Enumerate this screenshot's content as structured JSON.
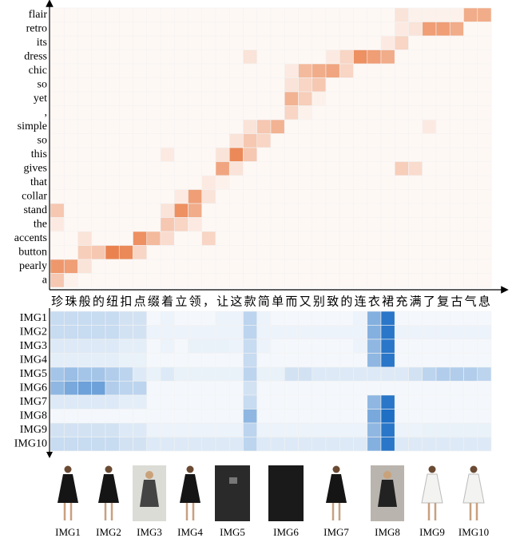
{
  "chart_data": [
    {
      "type": "heatmap",
      "color_low": "#ffffff",
      "color_high": "#e8743b",
      "categories": [
        "珍",
        "珠",
        "般",
        "的",
        "纽",
        "扣",
        "点",
        "缀",
        "着",
        "立",
        "领",
        "，",
        "让",
        "这",
        "款",
        "简",
        "单",
        "而",
        "又",
        "别",
        "致",
        "的",
        "连",
        "衣",
        "裙",
        "充",
        "满",
        "了",
        "复",
        "古",
        "气",
        "息"
      ],
      "rows": [
        "flair",
        "retro",
        "its",
        "dress",
        "chic",
        "so",
        "yet",
        ",",
        "simple",
        "so",
        "this",
        "gives",
        "that",
        "collar",
        "stand",
        "the",
        "accents",
        "button",
        "pearly",
        "a"
      ],
      "values": [
        [
          0.05,
          0.05,
          0.05,
          0.05,
          0.05,
          0.05,
          0.05,
          0.05,
          0.05,
          0.05,
          0.05,
          0.05,
          0.05,
          0.05,
          0.05,
          0.05,
          0.05,
          0.05,
          0.05,
          0.05,
          0.05,
          0.05,
          0.05,
          0.05,
          0.05,
          0.2,
          0.1,
          0.1,
          0.1,
          0.1,
          0.6,
          0.6
        ],
        [
          0.05,
          0.05,
          0.05,
          0.05,
          0.05,
          0.05,
          0.05,
          0.05,
          0.05,
          0.05,
          0.05,
          0.05,
          0.05,
          0.05,
          0.05,
          0.05,
          0.05,
          0.05,
          0.05,
          0.05,
          0.05,
          0.05,
          0.05,
          0.05,
          0.05,
          0.15,
          0.2,
          0.7,
          0.7,
          0.6,
          0.05,
          0.05
        ],
        [
          0.05,
          0.05,
          0.05,
          0.05,
          0.05,
          0.05,
          0.05,
          0.05,
          0.05,
          0.05,
          0.05,
          0.05,
          0.05,
          0.05,
          0.05,
          0.05,
          0.05,
          0.05,
          0.05,
          0.05,
          0.05,
          0.05,
          0.05,
          0.05,
          0.15,
          0.3,
          0.05,
          0.05,
          0.05,
          0.05,
          0.05,
          0.05
        ],
        [
          0.05,
          0.05,
          0.05,
          0.05,
          0.05,
          0.05,
          0.05,
          0.05,
          0.05,
          0.05,
          0.05,
          0.05,
          0.05,
          0.05,
          0.2,
          0.05,
          0.05,
          0.05,
          0.05,
          0.05,
          0.15,
          0.3,
          0.8,
          0.7,
          0.6,
          0.05,
          0.05,
          0.05,
          0.05,
          0.05,
          0.05,
          0.05
        ],
        [
          0.05,
          0.05,
          0.05,
          0.05,
          0.05,
          0.05,
          0.05,
          0.05,
          0.05,
          0.05,
          0.05,
          0.05,
          0.05,
          0.05,
          0.05,
          0.05,
          0.05,
          0.15,
          0.5,
          0.6,
          0.65,
          0.3,
          0.05,
          0.05,
          0.05,
          0.05,
          0.05,
          0.05,
          0.05,
          0.05,
          0.05,
          0.05
        ],
        [
          0.05,
          0.05,
          0.05,
          0.05,
          0.05,
          0.05,
          0.05,
          0.05,
          0.05,
          0.05,
          0.05,
          0.05,
          0.05,
          0.05,
          0.05,
          0.05,
          0.05,
          0.2,
          0.3,
          0.4,
          0.05,
          0.05,
          0.05,
          0.05,
          0.05,
          0.05,
          0.05,
          0.05,
          0.05,
          0.05,
          0.05,
          0.05
        ],
        [
          0.05,
          0.05,
          0.05,
          0.05,
          0.05,
          0.05,
          0.05,
          0.05,
          0.05,
          0.05,
          0.05,
          0.05,
          0.05,
          0.05,
          0.05,
          0.05,
          0.05,
          0.55,
          0.35,
          0.1,
          0.05,
          0.05,
          0.05,
          0.05,
          0.05,
          0.05,
          0.05,
          0.05,
          0.05,
          0.05,
          0.05,
          0.05
        ],
        [
          0.05,
          0.05,
          0.05,
          0.05,
          0.05,
          0.05,
          0.05,
          0.05,
          0.05,
          0.05,
          0.05,
          0.05,
          0.05,
          0.05,
          0.05,
          0.05,
          0.05,
          0.3,
          0.1,
          0.05,
          0.05,
          0.05,
          0.05,
          0.05,
          0.05,
          0.05,
          0.05,
          0.05,
          0.05,
          0.05,
          0.05,
          0.05
        ],
        [
          0.05,
          0.05,
          0.05,
          0.05,
          0.05,
          0.05,
          0.05,
          0.05,
          0.05,
          0.05,
          0.05,
          0.05,
          0.05,
          0.05,
          0.2,
          0.4,
          0.55,
          0.05,
          0.05,
          0.05,
          0.05,
          0.05,
          0.05,
          0.05,
          0.05,
          0.05,
          0.05,
          0.15,
          0.05,
          0.05,
          0.05,
          0.05
        ],
        [
          0.05,
          0.05,
          0.05,
          0.05,
          0.05,
          0.05,
          0.05,
          0.05,
          0.05,
          0.05,
          0.05,
          0.05,
          0.05,
          0.2,
          0.4,
          0.3,
          0.05,
          0.05,
          0.05,
          0.05,
          0.05,
          0.05,
          0.05,
          0.05,
          0.05,
          0.05,
          0.05,
          0.05,
          0.05,
          0.05,
          0.05,
          0.05
        ],
        [
          0.05,
          0.05,
          0.05,
          0.05,
          0.05,
          0.05,
          0.05,
          0.05,
          0.15,
          0.05,
          0.05,
          0.05,
          0.2,
          0.85,
          0.4,
          0.05,
          0.05,
          0.05,
          0.05,
          0.05,
          0.05,
          0.05,
          0.05,
          0.05,
          0.05,
          0.05,
          0.05,
          0.05,
          0.05,
          0.05,
          0.05,
          0.05
        ],
        [
          0.05,
          0.05,
          0.05,
          0.05,
          0.05,
          0.05,
          0.05,
          0.05,
          0.05,
          0.05,
          0.05,
          0.05,
          0.65,
          0.2,
          0.05,
          0.05,
          0.05,
          0.05,
          0.05,
          0.05,
          0.05,
          0.05,
          0.05,
          0.05,
          0.05,
          0.35,
          0.25,
          0.05,
          0.05,
          0.05,
          0.05,
          0.05
        ],
        [
          0.05,
          0.05,
          0.05,
          0.05,
          0.05,
          0.05,
          0.05,
          0.05,
          0.05,
          0.05,
          0.05,
          0.15,
          0.1,
          0.05,
          0.05,
          0.05,
          0.05,
          0.05,
          0.05,
          0.05,
          0.05,
          0.05,
          0.05,
          0.05,
          0.05,
          0.05,
          0.05,
          0.05,
          0.05,
          0.05,
          0.05,
          0.05
        ],
        [
          0.05,
          0.05,
          0.05,
          0.05,
          0.05,
          0.05,
          0.05,
          0.05,
          0.05,
          0.15,
          0.7,
          0.2,
          0.05,
          0.05,
          0.05,
          0.05,
          0.05,
          0.05,
          0.05,
          0.05,
          0.05,
          0.05,
          0.05,
          0.05,
          0.05,
          0.05,
          0.05,
          0.05,
          0.05,
          0.05,
          0.05,
          0.05
        ],
        [
          0.4,
          0.05,
          0.05,
          0.05,
          0.05,
          0.05,
          0.05,
          0.05,
          0.2,
          0.8,
          0.6,
          0.05,
          0.05,
          0.05,
          0.05,
          0.05,
          0.05,
          0.05,
          0.05,
          0.05,
          0.05,
          0.05,
          0.05,
          0.05,
          0.05,
          0.05,
          0.05,
          0.05,
          0.05,
          0.05,
          0.05,
          0.05
        ],
        [
          0.15,
          0.05,
          0.05,
          0.05,
          0.05,
          0.05,
          0.05,
          0.05,
          0.4,
          0.3,
          0.15,
          0.05,
          0.05,
          0.05,
          0.05,
          0.05,
          0.05,
          0.05,
          0.05,
          0.05,
          0.05,
          0.05,
          0.05,
          0.05,
          0.05,
          0.05,
          0.05,
          0.05,
          0.05,
          0.05,
          0.05,
          0.05
        ],
        [
          0.05,
          0.05,
          0.2,
          0.05,
          0.05,
          0.05,
          0.8,
          0.5,
          0.25,
          0.05,
          0.05,
          0.3,
          0.05,
          0.05,
          0.05,
          0.05,
          0.05,
          0.05,
          0.05,
          0.05,
          0.05,
          0.05,
          0.05,
          0.05,
          0.05,
          0.05,
          0.05,
          0.05,
          0.05,
          0.05,
          0.05,
          0.05
        ],
        [
          0.05,
          0.05,
          0.35,
          0.4,
          0.9,
          0.85,
          0.3,
          0.05,
          0.05,
          0.05,
          0.05,
          0.05,
          0.05,
          0.05,
          0.05,
          0.05,
          0.05,
          0.05,
          0.05,
          0.05,
          0.05,
          0.05,
          0.05,
          0.05,
          0.05,
          0.05,
          0.05,
          0.05,
          0.05,
          0.05,
          0.05,
          0.05
        ],
        [
          0.75,
          0.7,
          0.2,
          0.05,
          0.05,
          0.05,
          0.05,
          0.05,
          0.05,
          0.05,
          0.05,
          0.05,
          0.05,
          0.05,
          0.05,
          0.05,
          0.05,
          0.05,
          0.05,
          0.05,
          0.05,
          0.05,
          0.05,
          0.05,
          0.05,
          0.05,
          0.05,
          0.05,
          0.05,
          0.05,
          0.05,
          0.05
        ],
        [
          0.4,
          0.1,
          0.05,
          0.05,
          0.05,
          0.05,
          0.05,
          0.05,
          0.05,
          0.05,
          0.05,
          0.05,
          0.05,
          0.05,
          0.05,
          0.05,
          0.05,
          0.05,
          0.05,
          0.05,
          0.05,
          0.05,
          0.05,
          0.05,
          0.05,
          0.05,
          0.05,
          0.05,
          0.05,
          0.05,
          0.05,
          0.05
        ]
      ]
    },
    {
      "type": "heatmap",
      "color_low": "#ffffff",
      "color_high": "#1f6fc5",
      "rows": [
        "IMG1",
        "IMG2",
        "IMG3",
        "IMG4",
        "IMG5",
        "IMG6",
        "IMG7",
        "IMG8",
        "IMG9",
        "IMG10"
      ],
      "values": [
        [
          0.25,
          0.25,
          0.25,
          0.25,
          0.25,
          0.2,
          0.2,
          0.05,
          0.08,
          0.05,
          0.05,
          0.05,
          0.08,
          0.08,
          0.3,
          0.08,
          0.05,
          0.05,
          0.05,
          0.05,
          0.05,
          0.05,
          0.08,
          0.55,
          0.95,
          0.05,
          0.05,
          0.05,
          0.05,
          0.05,
          0.05,
          0.05
        ],
        [
          0.25,
          0.25,
          0.25,
          0.25,
          0.25,
          0.2,
          0.2,
          0.08,
          0.08,
          0.08,
          0.08,
          0.08,
          0.08,
          0.08,
          0.3,
          0.08,
          0.08,
          0.08,
          0.08,
          0.08,
          0.08,
          0.08,
          0.08,
          0.55,
          0.95,
          0.08,
          0.08,
          0.08,
          0.08,
          0.08,
          0.08,
          0.08
        ],
        [
          0.15,
          0.15,
          0.15,
          0.15,
          0.15,
          0.12,
          0.12,
          0.05,
          0.08,
          0.05,
          0.1,
          0.1,
          0.1,
          0.08,
          0.25,
          0.08,
          0.05,
          0.05,
          0.05,
          0.05,
          0.05,
          0.05,
          0.08,
          0.5,
          0.95,
          0.05,
          0.05,
          0.05,
          0.05,
          0.05,
          0.05,
          0.05
        ],
        [
          0.12,
          0.12,
          0.12,
          0.12,
          0.12,
          0.1,
          0.1,
          0.05,
          0.05,
          0.05,
          0.05,
          0.05,
          0.05,
          0.05,
          0.25,
          0.05,
          0.05,
          0.05,
          0.05,
          0.05,
          0.05,
          0.05,
          0.05,
          0.5,
          0.95,
          0.05,
          0.05,
          0.05,
          0.05,
          0.05,
          0.05,
          0.05
        ],
        [
          0.4,
          0.45,
          0.4,
          0.4,
          0.35,
          0.3,
          0.15,
          0.1,
          0.15,
          0.1,
          0.1,
          0.1,
          0.1,
          0.1,
          0.3,
          0.1,
          0.1,
          0.2,
          0.2,
          0.15,
          0.15,
          0.15,
          0.15,
          0.15,
          0.15,
          0.15,
          0.2,
          0.3,
          0.35,
          0.35,
          0.35,
          0.3
        ],
        [
          0.5,
          0.6,
          0.65,
          0.65,
          0.35,
          0.3,
          0.3,
          0.05,
          0.05,
          0.05,
          0.05,
          0.05,
          0.05,
          0.05,
          0.2,
          0.05,
          0.05,
          0.05,
          0.05,
          0.05,
          0.05,
          0.05,
          0.05,
          0.05,
          0.05,
          0.05,
          0.05,
          0.05,
          0.05,
          0.05,
          0.05,
          0.05
        ],
        [
          0.15,
          0.15,
          0.15,
          0.15,
          0.15,
          0.12,
          0.12,
          0.05,
          0.05,
          0.05,
          0.05,
          0.05,
          0.05,
          0.05,
          0.25,
          0.05,
          0.05,
          0.05,
          0.05,
          0.05,
          0.05,
          0.05,
          0.05,
          0.5,
          0.95,
          0.05,
          0.05,
          0.05,
          0.05,
          0.05,
          0.05,
          0.05
        ],
        [
          0.05,
          0.05,
          0.05,
          0.05,
          0.05,
          0.05,
          0.05,
          0.05,
          0.05,
          0.05,
          0.05,
          0.05,
          0.05,
          0.05,
          0.5,
          0.05,
          0.05,
          0.05,
          0.05,
          0.05,
          0.05,
          0.05,
          0.05,
          0.6,
          1.0,
          0.05,
          0.05,
          0.05,
          0.05,
          0.05,
          0.05,
          0.05
        ],
        [
          0.2,
          0.2,
          0.2,
          0.2,
          0.2,
          0.15,
          0.15,
          0.08,
          0.08,
          0.08,
          0.08,
          0.08,
          0.08,
          0.08,
          0.3,
          0.08,
          0.08,
          0.08,
          0.08,
          0.08,
          0.08,
          0.08,
          0.08,
          0.5,
          0.95,
          0.08,
          0.08,
          0.1,
          0.1,
          0.1,
          0.1,
          0.1
        ],
        [
          0.25,
          0.25,
          0.25,
          0.25,
          0.25,
          0.2,
          0.2,
          0.15,
          0.15,
          0.15,
          0.15,
          0.15,
          0.15,
          0.15,
          0.3,
          0.15,
          0.15,
          0.15,
          0.15,
          0.15,
          0.15,
          0.15,
          0.15,
          0.55,
          0.95,
          0.15,
          0.15,
          0.15,
          0.15,
          0.15,
          0.15,
          0.15
        ]
      ]
    }
  ]
}
